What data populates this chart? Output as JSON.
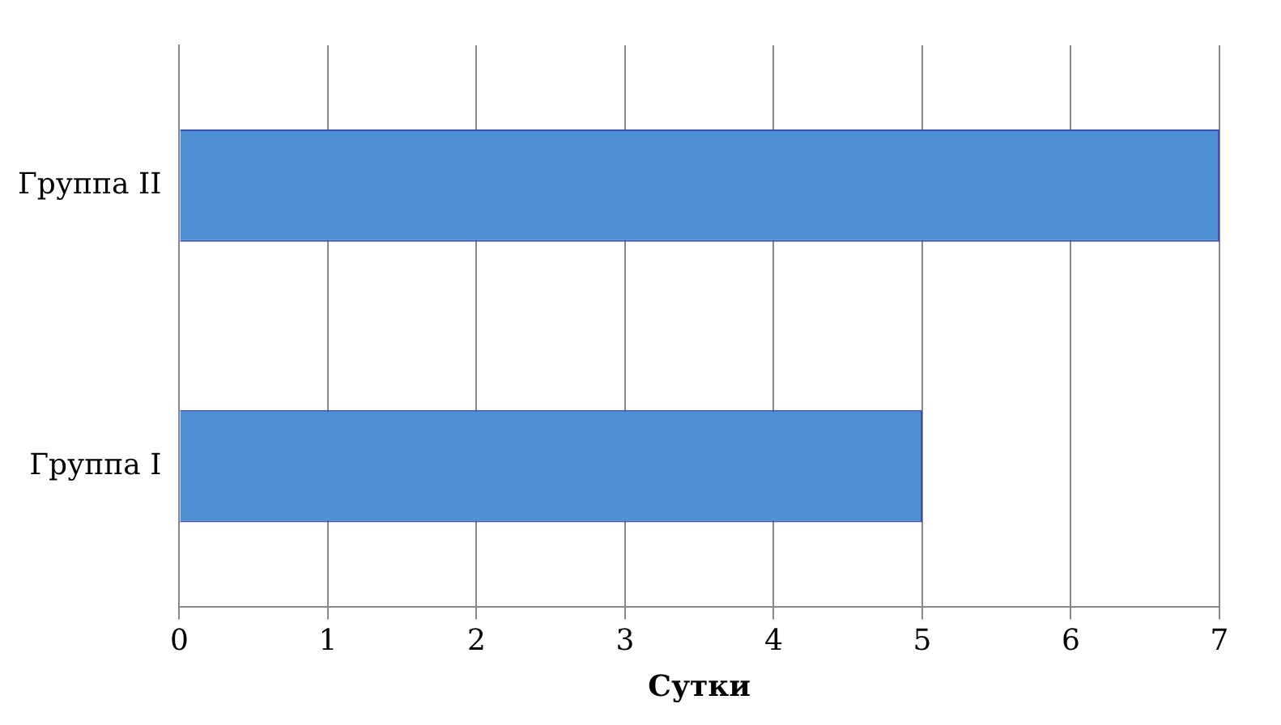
{
  "chart_data": {
    "type": "bar",
    "orientation": "horizontal",
    "categories": [
      "Группа II",
      "Группа I"
    ],
    "values": [
      7,
      5
    ],
    "color": "#4f8fd6",
    "xlim": [
      0,
      7
    ],
    "xticks": [
      0,
      1,
      2,
      3,
      4,
      5,
      6,
      7
    ],
    "xlabel": "Сутки",
    "grid": "x",
    "legend": false
  }
}
